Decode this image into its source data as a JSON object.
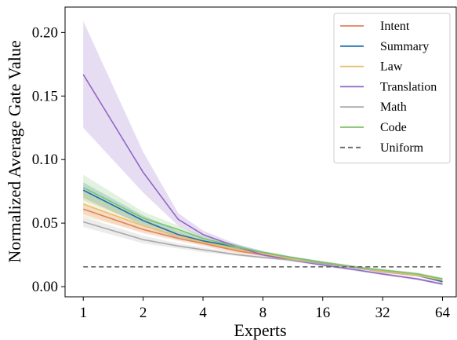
{
  "chart_data": {
    "type": "line",
    "title": "",
    "xlabel": "Experts",
    "ylabel": "Normalized Average Gate Value",
    "x_scale": "log2",
    "x_ticks": [
      1,
      2,
      4,
      8,
      16,
      32,
      64
    ],
    "x_tick_labels": [
      "1",
      "2",
      "4",
      "8",
      "16",
      "32",
      "64"
    ],
    "xlim": [
      0.81,
      75
    ],
    "y_ticks": [
      0.0,
      0.05,
      0.1,
      0.15,
      0.2
    ],
    "y_tick_labels": [
      "0.00",
      "0.05",
      "0.10",
      "0.15",
      "0.20"
    ],
    "ylim": [
      -0.008,
      0.22
    ],
    "grid": false,
    "legend_position": "top-right",
    "series": [
      {
        "name": "Intent",
        "color": "#e0825a",
        "x": [
          1,
          2,
          3,
          4,
          6,
          8,
          11,
          16,
          24,
          32,
          48,
          64
        ],
        "values": [
          0.061,
          0.045,
          0.038,
          0.034,
          0.028,
          0.025,
          0.022,
          0.019,
          0.015,
          0.012,
          0.009,
          0.004
        ],
        "band_width": [
          0.004,
          0.003,
          0.002,
          0.002,
          0.002,
          0.001,
          0.001,
          0.001,
          0.001,
          0.001,
          0.001,
          0.001
        ]
      },
      {
        "name": "Summary",
        "color": "#1f6fa8",
        "x": [
          1,
          2,
          3,
          4,
          6,
          8,
          11,
          16,
          24,
          32,
          48,
          64
        ],
        "values": [
          0.076,
          0.052,
          0.041,
          0.036,
          0.031,
          0.027,
          0.023,
          0.019,
          0.015,
          0.012,
          0.009,
          0.004
        ],
        "band_width": [
          0.006,
          0.004,
          0.003,
          0.002,
          0.002,
          0.001,
          0.001,
          0.001,
          0.001,
          0.001,
          0.001,
          0.001
        ]
      },
      {
        "name": "Law",
        "color": "#e8bf6a",
        "x": [
          1,
          2,
          3,
          4,
          6,
          8,
          11,
          16,
          24,
          32,
          48,
          64
        ],
        "values": [
          0.065,
          0.048,
          0.04,
          0.035,
          0.029,
          0.026,
          0.022,
          0.019,
          0.015,
          0.012,
          0.009,
          0.005
        ],
        "band_width": [
          0.01,
          0.005,
          0.003,
          0.002,
          0.002,
          0.001,
          0.001,
          0.001,
          0.001,
          0.001,
          0.001,
          0.001
        ]
      },
      {
        "name": "Translation",
        "color": "#9366c4",
        "x": [
          1,
          2,
          3,
          4,
          6,
          8,
          11,
          16,
          24,
          32,
          48,
          64
        ],
        "values": [
          0.167,
          0.09,
          0.053,
          0.041,
          0.031,
          0.025,
          0.021,
          0.017,
          0.013,
          0.01,
          0.006,
          0.002
        ],
        "band_width": [
          0.042,
          0.016,
          0.005,
          0.003,
          0.002,
          0.001,
          0.001,
          0.001,
          0.001,
          0.001,
          0.001,
          0.001
        ]
      },
      {
        "name": "Math",
        "color": "#a9a9a9",
        "x": [
          1,
          2,
          3,
          4,
          6,
          8,
          11,
          16,
          24,
          32,
          48,
          64
        ],
        "values": [
          0.051,
          0.037,
          0.032,
          0.029,
          0.025,
          0.023,
          0.021,
          0.018,
          0.015,
          0.013,
          0.01,
          0.006
        ],
        "band_width": [
          0.004,
          0.003,
          0.002,
          0.002,
          0.001,
          0.001,
          0.001,
          0.001,
          0.001,
          0.001,
          0.001,
          0.001
        ]
      },
      {
        "name": "Code",
        "color": "#7cc46a",
        "x": [
          1,
          2,
          3,
          4,
          6,
          8,
          11,
          16,
          24,
          32,
          48,
          64
        ],
        "values": [
          0.078,
          0.054,
          0.045,
          0.038,
          0.031,
          0.027,
          0.023,
          0.019,
          0.015,
          0.013,
          0.01,
          0.006
        ],
        "band_width": [
          0.01,
          0.005,
          0.003,
          0.002,
          0.002,
          0.001,
          0.001,
          0.001,
          0.001,
          0.001,
          0.001,
          0.001
        ]
      },
      {
        "name": "Uniform",
        "color": "#666666",
        "dashed": true,
        "x": [
          1,
          64
        ],
        "values": [
          0.0156,
          0.0156
        ]
      }
    ]
  }
}
